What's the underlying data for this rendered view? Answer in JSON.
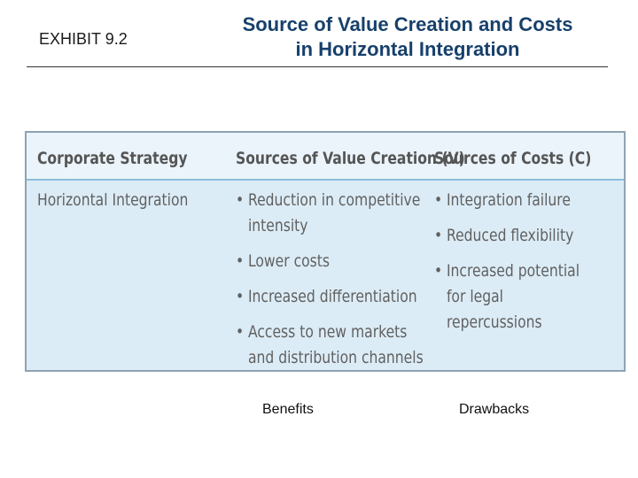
{
  "exhibit_label": "EXHIBIT 9.2",
  "title": {
    "line1": "Source of Value Creation and Costs",
    "line2": "in Horizontal Integration"
  },
  "table": {
    "headers": {
      "strategy": "Corporate Strategy",
      "value": "Sources of Value Creation (V)",
      "costs": "Sources of Costs (C)"
    },
    "row": {
      "strategy": "Horizontal Integration",
      "value_items": [
        "Reduction in competitive intensity",
        "Lower costs",
        "Increased differentiation",
        "Access to new markets and distribution channels"
      ],
      "cost_items": [
        "Integration failure",
        "Reduced flexibility",
        "Increased potential for legal repercussions"
      ]
    }
  },
  "captions": {
    "benefits": "Benefits",
    "drawbacks": "Drawbacks"
  },
  "colors": {
    "title": "#17406b",
    "table_background": "#dcecf6",
    "header_background": "#eaf4fa",
    "header_rule": "#8cbfdc"
  }
}
